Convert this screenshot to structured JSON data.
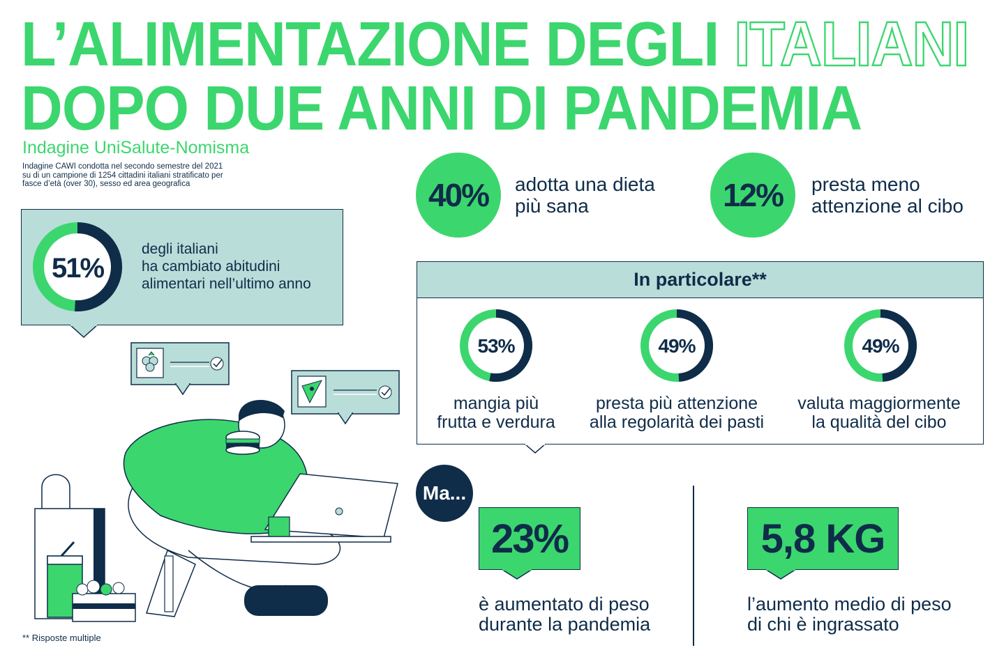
{
  "header": {
    "title_line1_a": "L’ALIMENTAZIONE DEGLI ",
    "title_line1_b": "ITALIANI",
    "title_line2": "DOPO DUE ANNI DI PANDEMIA",
    "subtitle": "Indagine UniSalute-Nomisma",
    "methodology": [
      "Indagine CAWI condotta nel secondo semestre del 2021",
      "su di un campione di 1254 cittadini italiani stratificato per",
      "fasce d’età (over 30), sesso ed area geografica"
    ]
  },
  "main_stat": {
    "value": "51%",
    "share": 0.51,
    "lines": [
      "degli italiani",
      "ha cambiato abitudini",
      "alimentari nell’ultimo anno"
    ]
  },
  "top_stats": [
    {
      "value": "40%",
      "lines": [
        "adotta una dieta",
        "più sana"
      ]
    },
    {
      "value": "12%",
      "lines": [
        "presta meno",
        "attenzione al cibo"
      ]
    }
  ],
  "in_particolare": {
    "heading": "In particolare**",
    "items": [
      {
        "value": "53%",
        "share": 0.53,
        "lines": [
          "mangia più",
          "frutta e verdura"
        ]
      },
      {
        "value": "49%",
        "share": 0.49,
        "lines": [
          "presta più attenzione",
          "alla regolarità dei pasti"
        ]
      },
      {
        "value": "49%",
        "share": 0.49,
        "lines": [
          "valuta maggiormente",
          "la qualità del cibo"
        ]
      }
    ]
  },
  "ma": "Ma...",
  "weight_stats": [
    {
      "value": "23%",
      "lines": [
        "è aumentato di peso",
        "durante la pandemia"
      ]
    },
    {
      "value": "5,8 KG",
      "lines": [
        "l’aumento medio di peso",
        "di chi è ingrassato"
      ]
    }
  ],
  "footnote": "** Risposte multiple",
  "colors": {
    "green": "#3cd66e",
    "navy": "#0f2c49",
    "teal_light": "#b9ddd9"
  }
}
